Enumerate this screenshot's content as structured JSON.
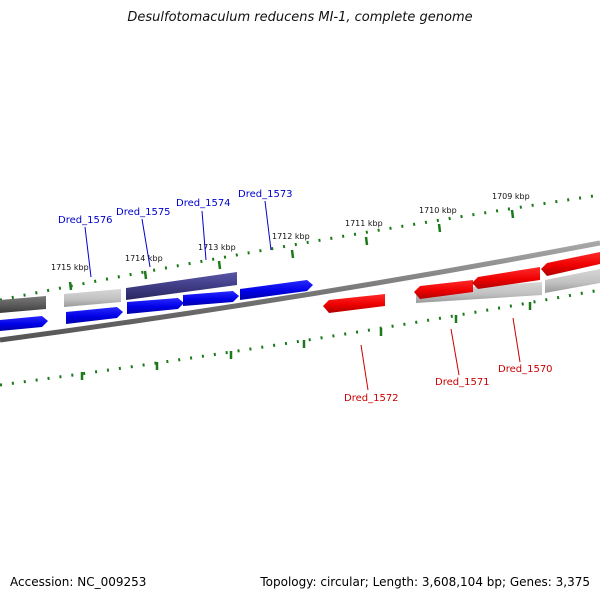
{
  "title": "Desulfotomaculum reducens MI-1, complete genome",
  "footer": {
    "accession": "Accession: NC_009253",
    "summary": "Topology: circular; Length: 3,608,104 bp; Genes: 3,375"
  },
  "colors": {
    "forward_gene": "#0000ee",
    "reverse_gene": "#ee0000",
    "tick": "#1a7a1a",
    "backbone": "#777777",
    "highlight": "#3d3a82"
  },
  "ticks": [
    "1715 kbp",
    "1714 kbp",
    "1713 kbp",
    "1712 kbp",
    "1711 kbp",
    "1710 kbp",
    "1709 kbp"
  ],
  "genes": [
    {
      "label": "Dred_1576",
      "strand": "forward"
    },
    {
      "label": "Dred_1575",
      "strand": "forward"
    },
    {
      "label": "Dred_1574",
      "strand": "forward"
    },
    {
      "label": "Dred_1573",
      "strand": "forward"
    },
    {
      "label": "Dred_1572",
      "strand": "reverse"
    },
    {
      "label": "Dred_1571",
      "strand": "reverse"
    },
    {
      "label": "Dred_1570",
      "strand": "reverse"
    }
  ]
}
